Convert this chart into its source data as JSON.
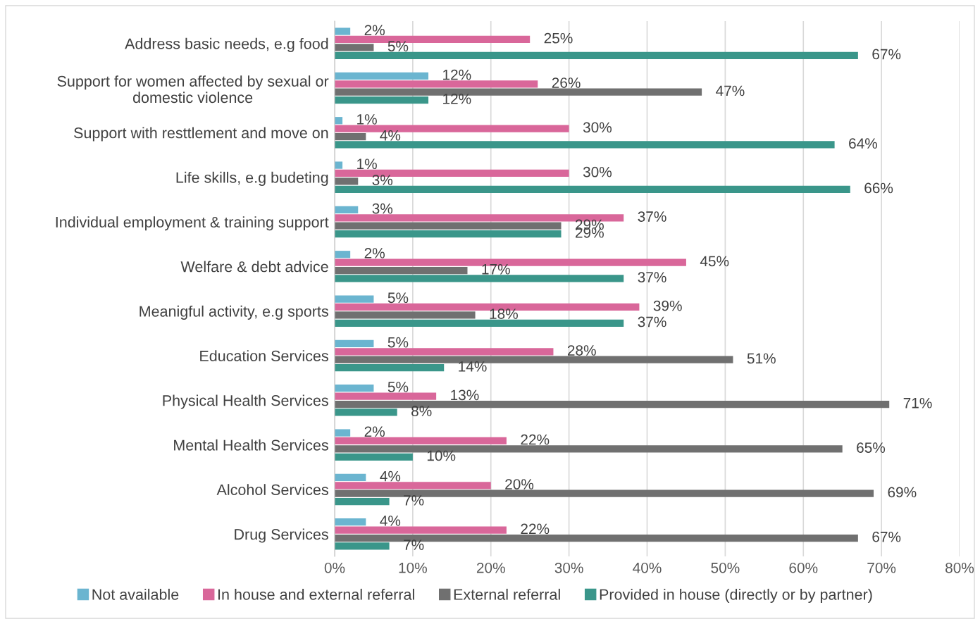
{
  "chart_data": {
    "type": "bar",
    "orientation": "horizontal",
    "categories": [
      "Address basic needs, e.g food",
      "Support for women affected by sexual or\ndomestic violence",
      "Support with resttlement and move on",
      "Life skills, e.g budeting",
      "Individual employment & training support",
      "Welfare & debt advice",
      "Meanigful activity, e.g sports",
      "Education Services",
      "Physical Health Services",
      "Mental Health Services",
      "Alcohol Services",
      "Drug Services"
    ],
    "series": [
      {
        "name": "Not available",
        "color": "#6bb5d0",
        "values": [
          2,
          12,
          1,
          1,
          3,
          2,
          5,
          5,
          5,
          2,
          4,
          4
        ],
        "value_labels": [
          "2%",
          "12%",
          "1%",
          "1%",
          "3%",
          "2%",
          "5%",
          "5%",
          "5%",
          "2%",
          "4%",
          "4%"
        ]
      },
      {
        "name": "In house and external referral",
        "color": "#d9679a",
        "values": [
          25,
          26,
          30,
          30,
          37,
          45,
          39,
          28,
          13,
          22,
          20,
          22
        ],
        "value_labels": [
          "25%",
          "26%",
          "30%",
          "30%",
          "37%",
          "45%",
          "39%",
          "28%",
          "13%",
          "22%",
          "20%",
          "22%"
        ]
      },
      {
        "name": "External referral",
        "color": "#707070",
        "values": [
          5,
          47,
          4,
          3,
          29,
          17,
          18,
          51,
          71,
          65,
          69,
          67
        ],
        "value_labels": [
          "5%",
          "47%",
          "4%",
          "3%",
          "29%",
          "17%",
          "18%",
          "51%",
          "71%",
          "65%",
          "69%",
          "67%"
        ]
      },
      {
        "name": "Provided in house (directly or by partner)",
        "color": "#3a968a",
        "values": [
          67,
          12,
          64,
          66,
          29,
          37,
          37,
          14,
          8,
          10,
          7,
          7
        ],
        "value_labels": [
          "67%",
          "12%",
          "64%",
          "66%",
          "29%",
          "37%",
          "37%",
          "14%",
          "8%",
          "10%",
          "7%",
          "7%"
        ]
      }
    ],
    "xlim": [
      0,
      80
    ],
    "xticks": [
      {
        "value": 0,
        "label": "0%"
      },
      {
        "value": 10,
        "label": "10%"
      },
      {
        "value": 20,
        "label": "20%"
      },
      {
        "value": 30,
        "label": "30%"
      },
      {
        "value": 40,
        "label": "40%"
      },
      {
        "value": 50,
        "label": "50%"
      },
      {
        "value": 60,
        "label": "60%"
      },
      {
        "value": 70,
        "label": "70%"
      },
      {
        "value": 80,
        "label": "80%"
      }
    ],
    "grid": "x",
    "legend": "bottom"
  }
}
